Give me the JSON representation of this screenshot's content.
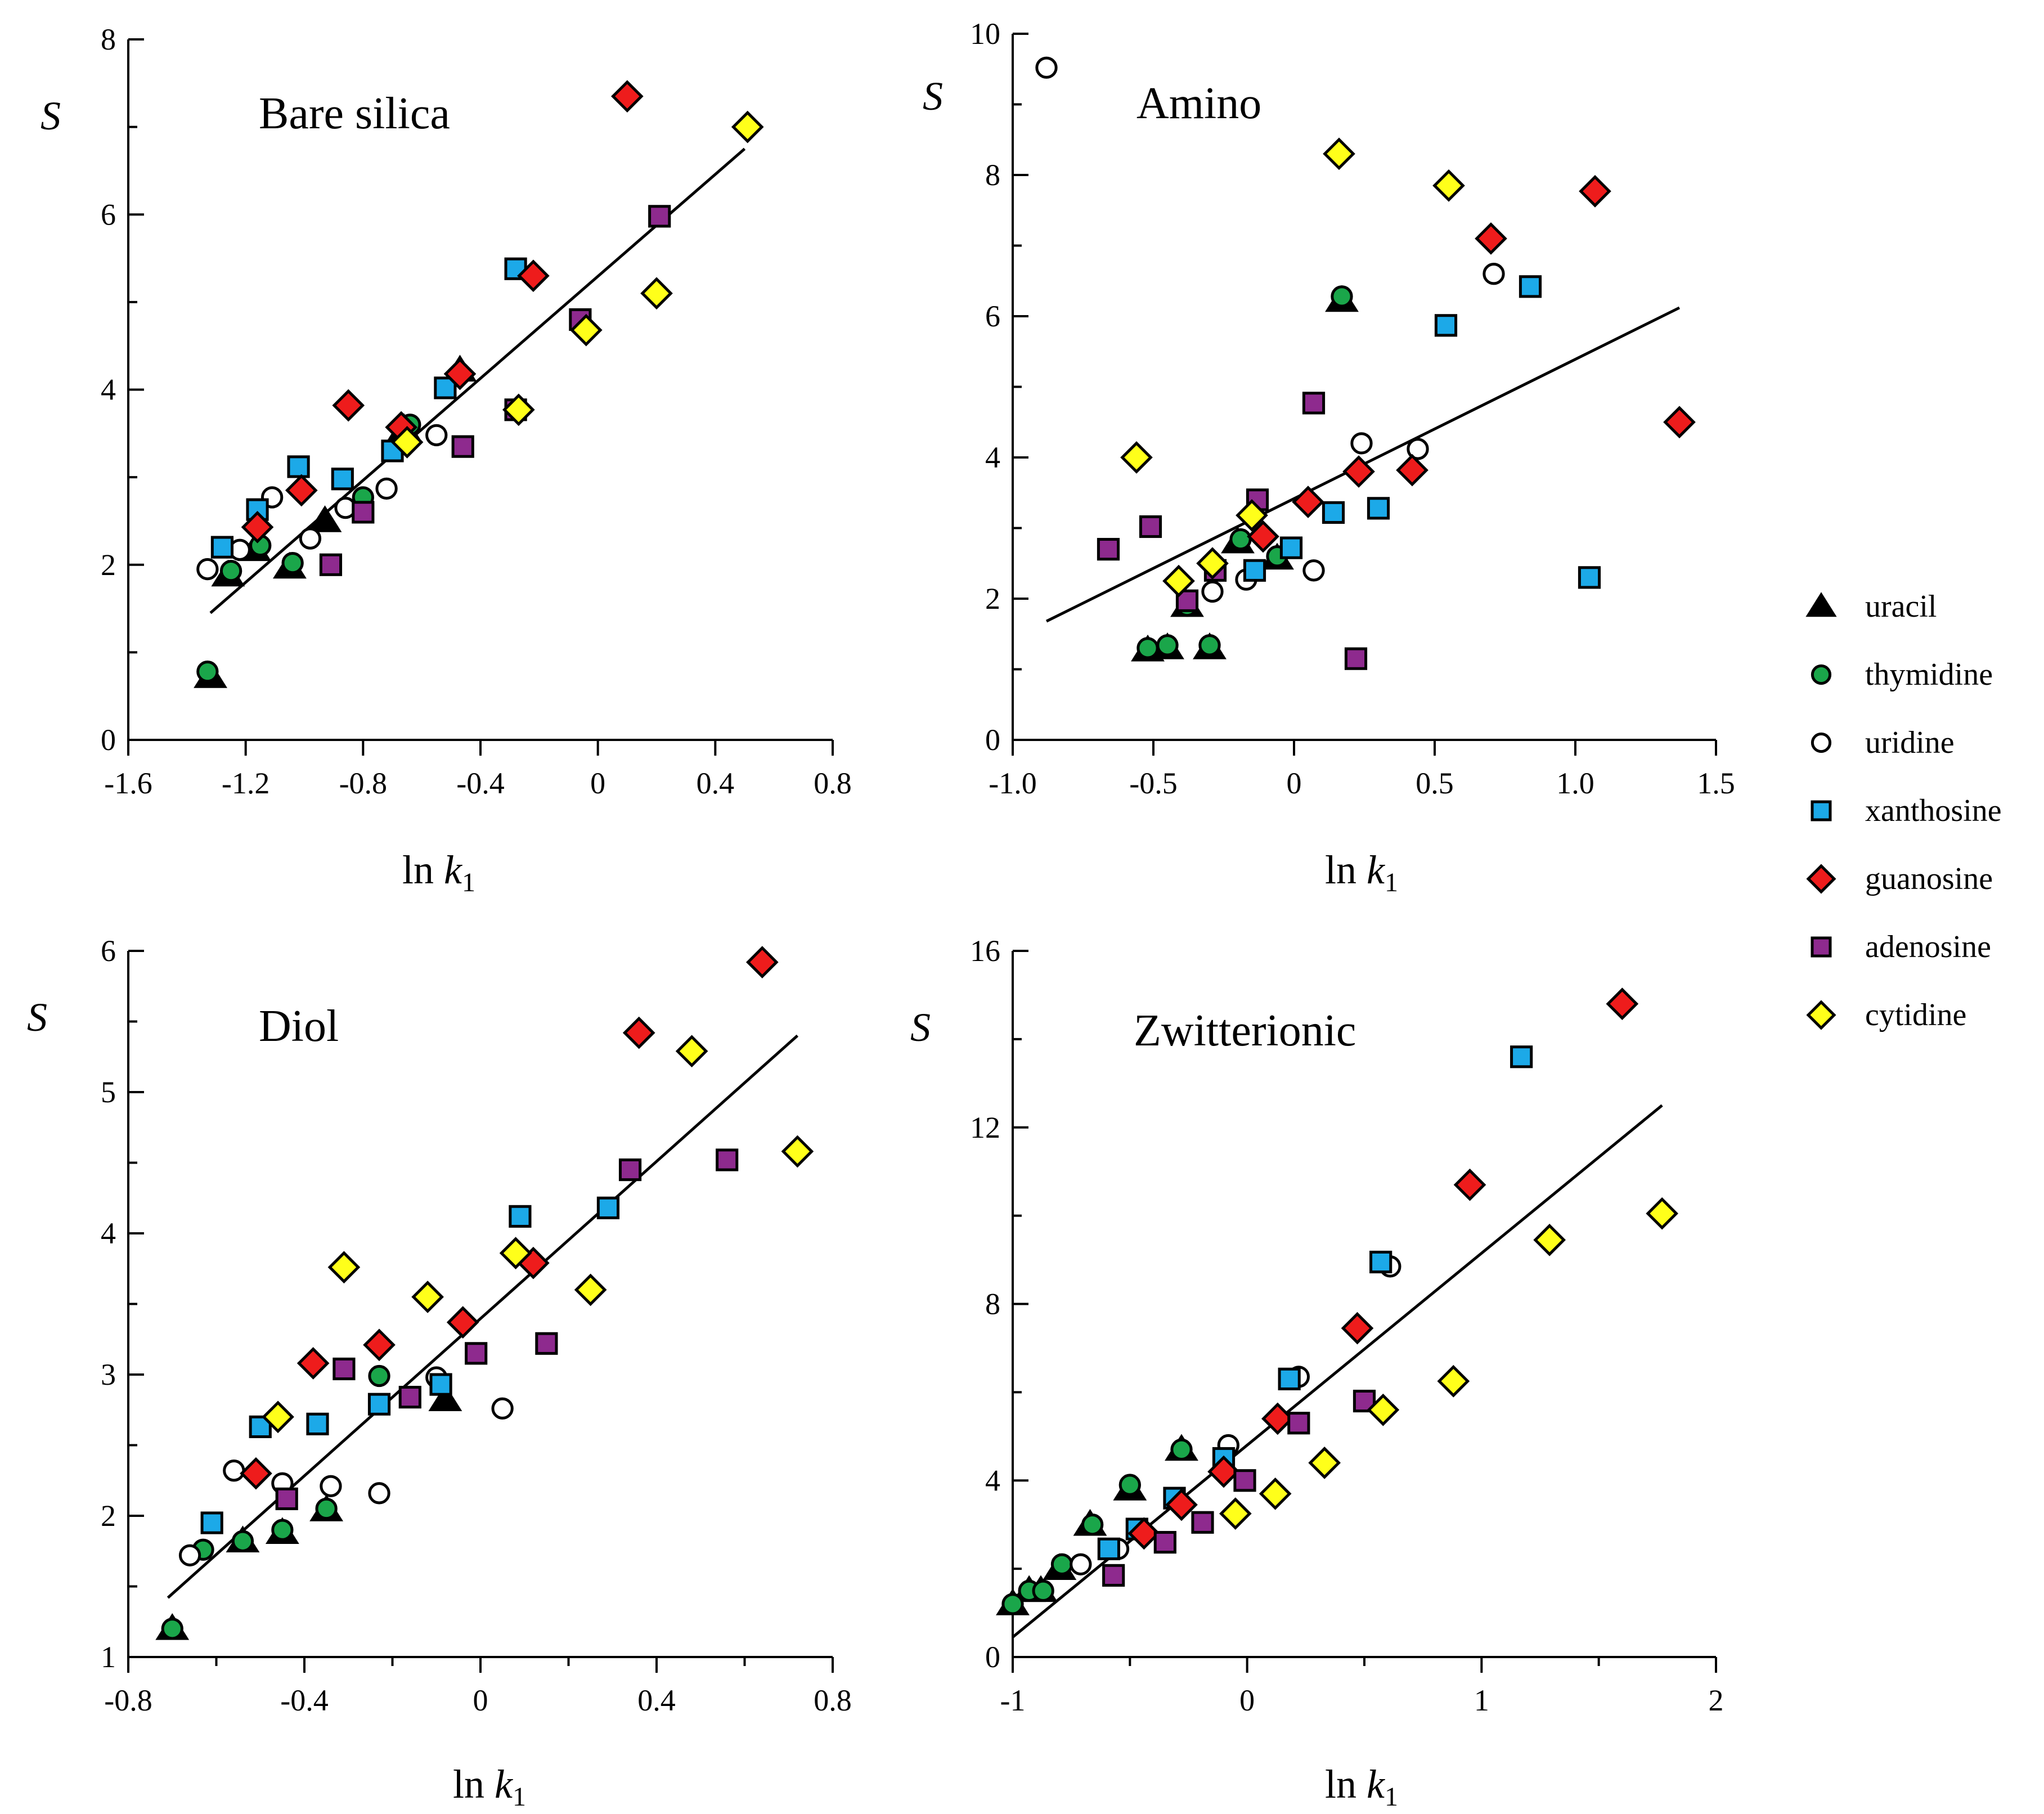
{
  "legend": {
    "entries": [
      {
        "name": "uracil",
        "marker": "triangle",
        "fill": "#000000"
      },
      {
        "name": "thymidine",
        "marker": "circle",
        "fill": "#1aa64a"
      },
      {
        "name": "uridine",
        "marker": "circle",
        "fill": "#ffffff"
      },
      {
        "name": "xanthosine",
        "marker": "square",
        "fill": "#1ca9e8"
      },
      {
        "name": "guanosine",
        "marker": "diamond",
        "fill": "#ee1c1c"
      },
      {
        "name": "adenosine",
        "marker": "square",
        "fill": "#8e2a8e"
      },
      {
        "name": "cytidine",
        "marker": "diamond",
        "fill": "#ffff1a"
      }
    ]
  },
  "chart_data": [
    {
      "type": "scatter",
      "title": "Bare silica",
      "ylabel": "S",
      "xlabel": {
        "base": "ln ",
        "var": "k",
        "sub": "1"
      },
      "xlim": [
        -1.6,
        0.8
      ],
      "ylim": [
        0,
        8
      ],
      "xticks": [
        -1.6,
        -1.2,
        -0.8,
        -0.4,
        0,
        0.4,
        0.8
      ],
      "xtick_labels": [
        "-1.6",
        "-1.2",
        "-0.8",
        "-0.4",
        "0",
        "0.4",
        "0.8"
      ],
      "yticks": [
        0,
        2,
        4,
        6,
        8
      ],
      "ytick_labels": [
        "0",
        "2",
        "4",
        "6",
        "8"
      ],
      "minor_yticks": [
        1,
        3,
        5,
        7
      ],
      "fit_line": {
        "x": [
          -1.32,
          0.5
        ],
        "y": [
          1.45,
          6.75
        ]
      },
      "series": [
        {
          "name": "uracil",
          "points": [
            [
              -1.32,
              0.72
            ],
            [
              -1.26,
              1.88
            ],
            [
              -1.17,
              2.17
            ],
            [
              -1.05,
              1.97
            ],
            [
              -0.93,
              2.5
            ],
            [
              -0.66,
              3.55
            ],
            [
              -0.47,
              4.22
            ]
          ]
        },
        {
          "name": "thymidine",
          "points": [
            [
              -1.33,
              0.78
            ],
            [
              -1.25,
              1.93
            ],
            [
              -1.15,
              2.22
            ],
            [
              -1.04,
              2.02
            ],
            [
              -0.8,
              2.77
            ],
            [
              -0.64,
              3.6
            ]
          ]
        },
        {
          "name": "uridine",
          "points": [
            [
              -1.33,
              1.95
            ],
            [
              -1.22,
              2.17
            ],
            [
              -1.11,
              2.77
            ],
            [
              -0.98,
              2.3
            ],
            [
              -0.86,
              2.65
            ],
            [
              -0.72,
              2.87
            ],
            [
              -0.55,
              3.48
            ]
          ]
        },
        {
          "name": "xanthosine",
          "points": [
            [
              -1.28,
              2.2
            ],
            [
              -1.16,
              2.63
            ],
            [
              -1.02,
              3.12
            ],
            [
              -0.87,
              2.98
            ],
            [
              -0.7,
              3.3
            ],
            [
              -0.52,
              4.02
            ],
            [
              -0.28,
              5.38
            ]
          ]
        },
        {
          "name": "guanosine",
          "points": [
            [
              -1.16,
              2.43
            ],
            [
              -1.01,
              2.85
            ],
            [
              -0.85,
              3.82
            ],
            [
              -0.67,
              3.57
            ],
            [
              -0.47,
              4.18
            ],
            [
              -0.22,
              5.3
            ],
            [
              0.1,
              7.35
            ]
          ]
        },
        {
          "name": "adenosine",
          "points": [
            [
              -0.91,
              2.0
            ],
            [
              -0.8,
              2.6
            ],
            [
              -0.46,
              3.35
            ],
            [
              -0.28,
              3.77
            ],
            [
              -0.06,
              4.8
            ],
            [
              0.21,
              5.98
            ]
          ]
        },
        {
          "name": "cytidine",
          "points": [
            [
              -0.65,
              3.4
            ],
            [
              -0.27,
              3.77
            ],
            [
              -0.04,
              4.68
            ],
            [
              0.2,
              5.1
            ],
            [
              0.51,
              7.0
            ]
          ]
        }
      ]
    },
    {
      "type": "scatter",
      "title": "Amino",
      "ylabel": "S",
      "xlabel": {
        "base": "ln ",
        "var": "k",
        "sub": "1"
      },
      "xlim": [
        -1.0,
        1.5
      ],
      "ylim": [
        0,
        10
      ],
      "xticks": [
        -1.0,
        -0.5,
        0,
        0.5,
        1.0,
        1.5
      ],
      "xtick_labels": [
        "-1.0",
        "-0.5",
        "0",
        "0.5",
        "1.0",
        "1.5"
      ],
      "yticks": [
        0,
        2,
        4,
        6,
        8,
        10
      ],
      "ytick_labels": [
        "0",
        "2",
        "4",
        "6",
        "8",
        "10"
      ],
      "minor_yticks": [
        1,
        3,
        5,
        7,
        9
      ],
      "fit_line": {
        "x": [
          -0.88,
          1.37
        ],
        "y": [
          1.68,
          6.12
        ]
      },
      "series": [
        {
          "name": "uracil",
          "points": [
            [
              -0.52,
              1.27
            ],
            [
              -0.45,
              1.3
            ],
            [
              -0.3,
              1.3
            ],
            [
              -0.38,
              1.9
            ],
            [
              -0.2,
              2.8
            ],
            [
              -0.06,
              2.57
            ],
            [
              0.17,
              6.22
            ]
          ]
        },
        {
          "name": "thymidine",
          "points": [
            [
              -0.52,
              1.3
            ],
            [
              -0.45,
              1.34
            ],
            [
              -0.3,
              1.34
            ],
            [
              -0.38,
              1.9
            ],
            [
              -0.19,
              2.84
            ],
            [
              -0.06,
              2.6
            ],
            [
              0.17,
              6.28
            ]
          ]
        },
        {
          "name": "uridine",
          "points": [
            [
              -0.88,
              9.52
            ],
            [
              -0.29,
              2.1
            ],
            [
              -0.17,
              2.27
            ],
            [
              0.07,
              2.4
            ],
            [
              0.24,
              4.2
            ],
            [
              0.44,
              4.12
            ],
            [
              0.71,
              6.6
            ]
          ]
        },
        {
          "name": "xanthosine",
          "points": [
            [
              -0.14,
              2.4
            ],
            [
              -0.01,
              2.72
            ],
            [
              0.14,
              3.22
            ],
            [
              0.3,
              3.28
            ],
            [
              0.54,
              5.87
            ],
            [
              0.84,
              6.42
            ],
            [
              1.05,
              2.3
            ]
          ]
        },
        {
          "name": "guanosine",
          "points": [
            [
              -0.11,
              2.88
            ],
            [
              0.05,
              3.37
            ],
            [
              0.23,
              3.8
            ],
            [
              0.42,
              3.82
            ],
            [
              0.7,
              7.1
            ],
            [
              1.07,
              7.77
            ],
            [
              1.37,
              4.5
            ]
          ]
        },
        {
          "name": "adenosine",
          "points": [
            [
              -0.66,
              2.7
            ],
            [
              -0.51,
              3.02
            ],
            [
              -0.38,
              1.97
            ],
            [
              -0.28,
              2.4
            ],
            [
              -0.13,
              3.4
            ],
            [
              0.07,
              4.77
            ],
            [
              0.22,
              1.15
            ]
          ]
        },
        {
          "name": "cytidine",
          "points": [
            [
              -0.56,
              4.0
            ],
            [
              -0.41,
              2.25
            ],
            [
              -0.29,
              2.5
            ],
            [
              -0.15,
              3.18
            ],
            [
              0.16,
              8.3
            ],
            [
              0.55,
              7.85
            ]
          ]
        }
      ]
    },
    {
      "type": "scatter",
      "title": "Diol",
      "ylabel": "S",
      "xlabel": {
        "base": "ln ",
        "var": "k",
        "sub": "1"
      },
      "xlim": [
        -0.8,
        0.8
      ],
      "ylim": [
        1,
        6
      ],
      "xticks": [
        -0.8,
        -0.4,
        0,
        0.4,
        0.8
      ],
      "xtick_labels": [
        "-0.8",
        "-0.4",
        "0",
        "0.4",
        "0.8"
      ],
      "yticks": [
        1,
        2,
        3,
        4,
        5,
        6
      ],
      "ytick_labels": [
        "1",
        "2",
        "3",
        "4",
        "5",
        "6"
      ],
      "minor_yticks": [
        1.5,
        2.5,
        3.5,
        4.5,
        5.5
      ],
      "minor_xticks": [
        -0.6,
        -0.2,
        0.2,
        0.6
      ],
      "fit_line": {
        "x": [
          -0.71,
          0.72
        ],
        "y": [
          1.42,
          5.4
        ]
      },
      "series": [
        {
          "name": "uracil",
          "points": [
            [
              -0.7,
              1.2
            ],
            [
              -0.54,
              1.82
            ],
            [
              -0.45,
              1.88
            ],
            [
              -0.35,
              2.04
            ],
            [
              -0.08,
              2.82
            ]
          ]
        },
        {
          "name": "thymidine",
          "points": [
            [
              -0.7,
              1.2
            ],
            [
              -0.63,
              1.76
            ],
            [
              -0.54,
              1.82
            ],
            [
              -0.45,
              1.9
            ],
            [
              -0.35,
              2.05
            ],
            [
              -0.23,
              2.99
            ]
          ]
        },
        {
          "name": "uridine",
          "points": [
            [
              -0.66,
              1.72
            ],
            [
              -0.56,
              2.32
            ],
            [
              -0.45,
              2.23
            ],
            [
              -0.34,
              2.21
            ],
            [
              -0.23,
              2.16
            ],
            [
              -0.1,
              2.98
            ],
            [
              0.05,
              2.76
            ]
          ]
        },
        {
          "name": "xanthosine",
          "points": [
            [
              -0.61,
              1.95
            ],
            [
              -0.5,
              2.63
            ],
            [
              -0.37,
              2.65
            ],
            [
              -0.23,
              2.79
            ],
            [
              -0.09,
              2.93
            ],
            [
              0.09,
              4.12
            ],
            [
              0.29,
              4.18
            ]
          ]
        },
        {
          "name": "guanosine",
          "points": [
            [
              -0.51,
              2.3
            ],
            [
              -0.38,
              3.08
            ],
            [
              -0.23,
              3.21
            ],
            [
              -0.04,
              3.37
            ],
            [
              0.12,
              3.79
            ],
            [
              0.36,
              5.42
            ],
            [
              0.64,
              5.92
            ]
          ]
        },
        {
          "name": "adenosine",
          "points": [
            [
              -0.44,
              2.12
            ],
            [
              -0.31,
              3.04
            ],
            [
              -0.16,
              2.84
            ],
            [
              -0.01,
              3.15
            ],
            [
              0.15,
              3.22
            ],
            [
              0.34,
              4.45
            ],
            [
              0.56,
              4.52
            ]
          ]
        },
        {
          "name": "cytidine",
          "points": [
            [
              -0.46,
              2.7
            ],
            [
              -0.31,
              3.76
            ],
            [
              -0.12,
              3.55
            ],
            [
              0.08,
              3.86
            ],
            [
              0.25,
              3.6
            ],
            [
              0.48,
              5.29
            ],
            [
              0.72,
              4.58
            ]
          ]
        }
      ]
    },
    {
      "type": "scatter",
      "title": "Zwitterionic",
      "ylabel": "S",
      "xlabel": {
        "base": "ln ",
        "var": "k",
        "sub": "1"
      },
      "xlim": [
        -1,
        2
      ],
      "ylim": [
        0,
        16
      ],
      "xticks": [
        -1,
        0,
        1,
        2
      ],
      "xtick_labels": [
        "-1",
        "0",
        "1",
        "2"
      ],
      "yticks": [
        0,
        4,
        8,
        12,
        16
      ],
      "ytick_labels": [
        "0",
        "4",
        "8",
        "12",
        "16"
      ],
      "minor_yticks": [
        2,
        6,
        10,
        14
      ],
      "minor_xticks": [
        -0.5,
        0.5,
        1.5
      ],
      "fit_line": {
        "x": [
          -1,
          1.77
        ],
        "y": [
          0.45,
          12.5
        ]
      },
      "series": [
        {
          "name": "uracil",
          "points": [
            [
              -1.0,
              1.2
            ],
            [
              -0.93,
              1.5
            ],
            [
              -0.88,
              1.5
            ],
            [
              -0.8,
              2.0
            ],
            [
              -0.67,
              3.0
            ],
            [
              -0.5,
              3.8
            ],
            [
              -0.28,
              4.7
            ]
          ]
        },
        {
          "name": "thymidine",
          "points": [
            [
              -1.0,
              1.2
            ],
            [
              -0.93,
              1.5
            ],
            [
              -0.87,
              1.5
            ],
            [
              -0.79,
              2.1
            ],
            [
              -0.66,
              3.0
            ],
            [
              -0.5,
              3.9
            ],
            [
              -0.28,
              4.7
            ]
          ]
        },
        {
          "name": "uridine",
          "points": [
            [
              -0.71,
              2.1
            ],
            [
              -0.55,
              2.45
            ],
            [
              -0.08,
              4.8
            ],
            [
              0.22,
              6.35
            ],
            [
              0.61,
              8.85
            ]
          ]
        },
        {
          "name": "xanthosine",
          "points": [
            [
              -0.59,
              2.45
            ],
            [
              -0.47,
              2.9
            ],
            [
              -0.31,
              3.6
            ],
            [
              -0.1,
              4.5
            ],
            [
              0.18,
              6.3
            ],
            [
              0.57,
              8.95
            ],
            [
              1.17,
              13.6
            ]
          ]
        },
        {
          "name": "guanosine",
          "points": [
            [
              -0.44,
              2.8
            ],
            [
              -0.28,
              3.45
            ],
            [
              -0.1,
              4.2
            ],
            [
              0.13,
              5.4
            ],
            [
              0.47,
              7.45
            ],
            [
              0.95,
              10.7
            ],
            [
              1.6,
              14.8
            ]
          ]
        },
        {
          "name": "adenosine",
          "points": [
            [
              -0.57,
              1.85
            ],
            [
              -0.35,
              2.6
            ],
            [
              -0.19,
              3.05
            ],
            [
              -0.01,
              4.0
            ],
            [
              0.22,
              5.3
            ],
            [
              0.5,
              5.8
            ]
          ]
        },
        {
          "name": "cytidine",
          "points": [
            [
              -0.05,
              3.25
            ],
            [
              0.12,
              3.7
            ],
            [
              0.33,
              4.4
            ],
            [
              0.58,
              5.6
            ],
            [
              0.88,
              6.25
            ],
            [
              1.29,
              9.45
            ],
            [
              1.77,
              10.05
            ]
          ]
        }
      ]
    }
  ]
}
